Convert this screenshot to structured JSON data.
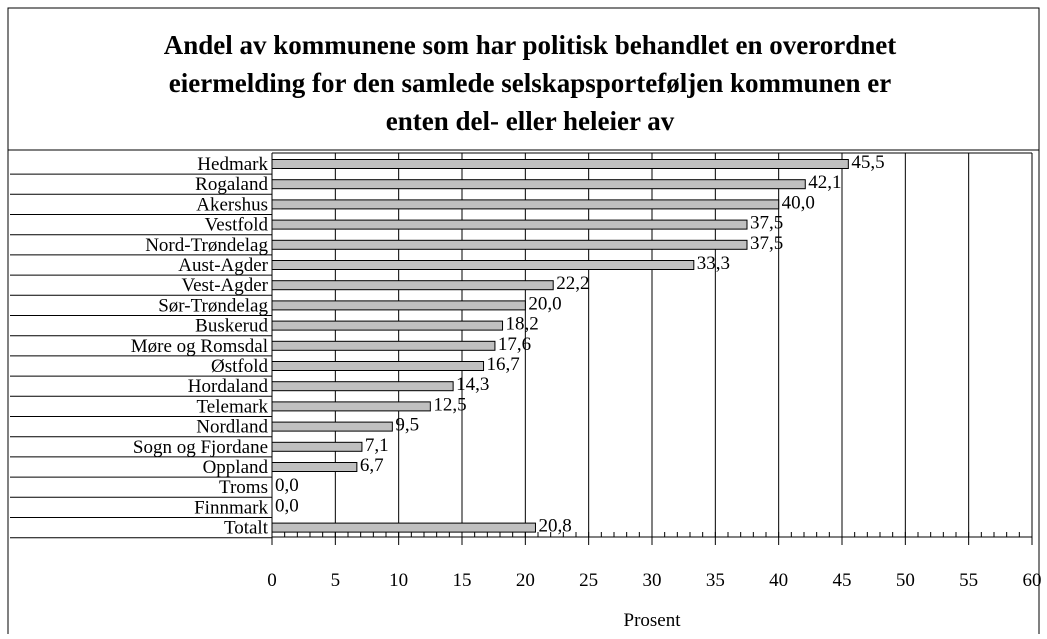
{
  "chart_data": {
    "type": "bar",
    "orientation": "horizontal",
    "title": [
      "Andel av kommunene som har politisk behandlet en overordnet",
      "eiermelding for den samlede selskapsporteføljen kommunen er",
      "enten del- eller heleier av"
    ],
    "x_label": "Prosent",
    "categories": [
      "Hedmark",
      "Rogaland",
      "Akershus",
      "Vestfold",
      "Nord-Trøndelag",
      "Aust-Agder",
      "Vest-Agder",
      "Sør-Trøndelag",
      "Buskerud",
      "Møre og Romsdal",
      "Østfold",
      "Hordaland",
      "Telemark",
      "Nordland",
      "Sogn og Fjordane",
      "Oppland",
      "Troms",
      "Finnmark",
      "Totalt"
    ],
    "values": [
      45.5,
      42.1,
      40,
      37.5,
      37.5,
      33.3,
      22.2,
      20,
      18.2,
      17.6,
      16.7,
      14.3,
      12.5,
      9.5,
      7.1,
      6.7,
      0,
      0,
      20.8
    ],
    "value_labels": [
      "45,5",
      "42,1",
      "40,0",
      "37,5",
      "37,5",
      "33,3",
      "22,2",
      "20,0",
      "18,2",
      "17,6",
      "16,7",
      "14,3",
      "12,5",
      "9,5",
      "7,1",
      "6,7",
      "0,0",
      "0,0",
      "20,8"
    ],
    "color": "#c0c0c0",
    "xlim": [
      0,
      60
    ],
    "xticks": [
      0,
      5,
      10,
      15,
      20,
      25,
      30,
      35,
      40,
      45,
      50,
      55,
      60
    ],
    "grid": true
  }
}
